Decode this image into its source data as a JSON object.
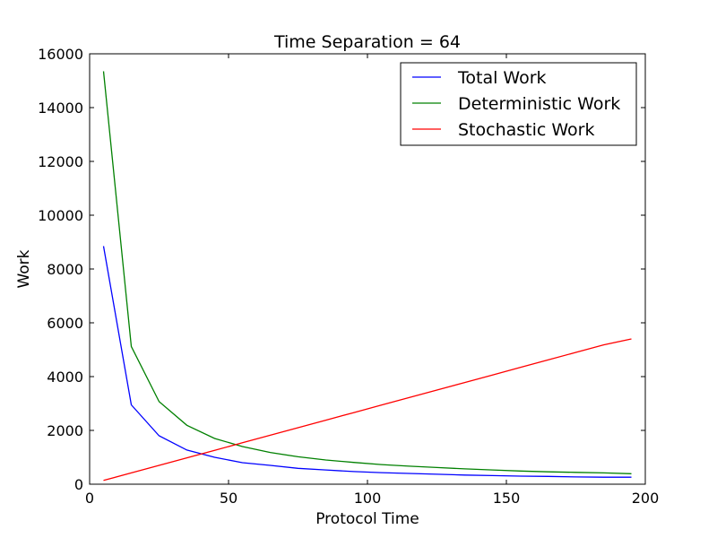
{
  "chart_data": {
    "type": "line",
    "title": "Time Separation = 64",
    "xlabel": "Protocol Time",
    "ylabel": "Work",
    "xlim": [
      0,
      200
    ],
    "ylim": [
      0,
      16000
    ],
    "xticks": [
      0,
      50,
      100,
      150,
      200
    ],
    "yticks": [
      0,
      2000,
      4000,
      6000,
      8000,
      10000,
      12000,
      14000,
      16000
    ],
    "grid": false,
    "legend_position": "top-right",
    "x": [
      5,
      15,
      25,
      35,
      45,
      55,
      65,
      75,
      85,
      95,
      105,
      115,
      125,
      135,
      145,
      155,
      165,
      175,
      185,
      195
    ],
    "series": [
      {
        "name": "Total Work",
        "color": "#0000ff",
        "values": [
          8850,
          2950,
          1800,
          1270,
          1000,
          800,
          700,
          590,
          530,
          470,
          430,
          400,
          370,
          340,
          320,
          300,
          290,
          270,
          260,
          260
        ]
      },
      {
        "name": "Deterministic Work",
        "color": "#008000",
        "values": [
          15350,
          5120,
          3070,
          2190,
          1700,
          1400,
          1180,
          1020,
          900,
          810,
          730,
          670,
          620,
          570,
          530,
          490,
          460,
          440,
          420,
          390
        ]
      },
      {
        "name": "Stochastic Work",
        "color": "#ff0000",
        "values": [
          140,
          420,
          700,
          980,
          1260,
          1540,
          1820,
          2100,
          2380,
          2660,
          2940,
          3220,
          3500,
          3780,
          4060,
          4340,
          4620,
          4900,
          5180,
          5400
        ]
      }
    ]
  }
}
